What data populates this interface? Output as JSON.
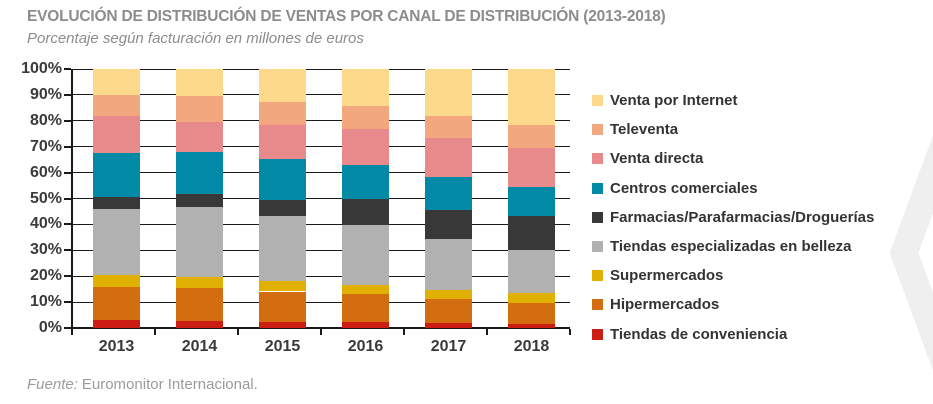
{
  "header": {
    "title": "EVOLUCIÓN DE DISTRIBUCIÓN DE VENTAS POR CANAL DE DISTRIBUCIÓN (2013-2018)",
    "subtitle": "Porcentaje según facturación en millones de euros"
  },
  "footer": {
    "source_label": "Fuente:",
    "source_text": "Euromonitor Internacional."
  },
  "colors": {
    "title_text": "#8C8C8C",
    "axis": "#1A1A1A",
    "tick_label": "#3A3A3A",
    "legend_text": "#333333",
    "source_text": "#9B9B9B",
    "chevron": "#EFEFEF",
    "background": "#FFFFFF"
  },
  "chart_data": {
    "type": "bar",
    "stacked": true,
    "title": "EVOLUCIÓN DE DISTRIBUCIÓN DE VENTAS POR CANAL DE DISTRIBUCIÓN (2013-2018)",
    "subtitle": "Porcentaje según facturación en millones de euros",
    "xlabel": "",
    "ylabel": "",
    "ylim": [
      0,
      100
    ],
    "yticks": [
      "100%",
      "90%",
      "80%",
      "70%",
      "60%",
      "50%",
      "40%",
      "30%",
      "20%",
      "10%",
      "0%"
    ],
    "grid": true,
    "legend_position": "right",
    "categories": [
      "2013",
      "2014",
      "2015",
      "2016",
      "2017",
      "2018"
    ],
    "series": [
      {
        "name": "Venta por Internet",
        "color": "#FDD98B",
        "values": [
          10.0,
          10.5,
          12.8,
          14.2,
          18.1,
          21.5
        ]
      },
      {
        "name": "Televenta",
        "color": "#F2A77E",
        "values": [
          8.3,
          9.8,
          8.7,
          8.8,
          8.6,
          9.0
        ]
      },
      {
        "name": "Venta directa",
        "color": "#E8898C",
        "values": [
          14.3,
          11.6,
          13.2,
          13.9,
          14.8,
          15.1
        ]
      },
      {
        "name": "Centros comerciales",
        "color": "#0289A6",
        "values": [
          16.9,
          16.3,
          15.7,
          13.3,
          13.1,
          11.1
        ]
      },
      {
        "name": "Farmacias/Parafarmacias/Droguerías",
        "color": "#383838",
        "values": [
          4.5,
          5.0,
          6.3,
          9.9,
          11.0,
          13.3
        ]
      },
      {
        "name": "Tiendas especializadas en belleza",
        "color": "#B1B1B1",
        "values": [
          25.6,
          27.2,
          25.3,
          23.2,
          19.6,
          16.5
        ]
      },
      {
        "name": "Supermercados",
        "color": "#E0B103",
        "values": [
          4.6,
          4.2,
          3.9,
          3.6,
          3.6,
          3.9
        ]
      },
      {
        "name": "Hipermercados",
        "color": "#D26E0F",
        "values": [
          12.6,
          12.5,
          11.6,
          10.7,
          9.3,
          8.0
        ]
      },
      {
        "name": "Tiendas de conveniencia",
        "color": "#CC1D15",
        "values": [
          3.2,
          2.9,
          2.5,
          2.4,
          1.9,
          1.6
        ]
      }
    ]
  }
}
